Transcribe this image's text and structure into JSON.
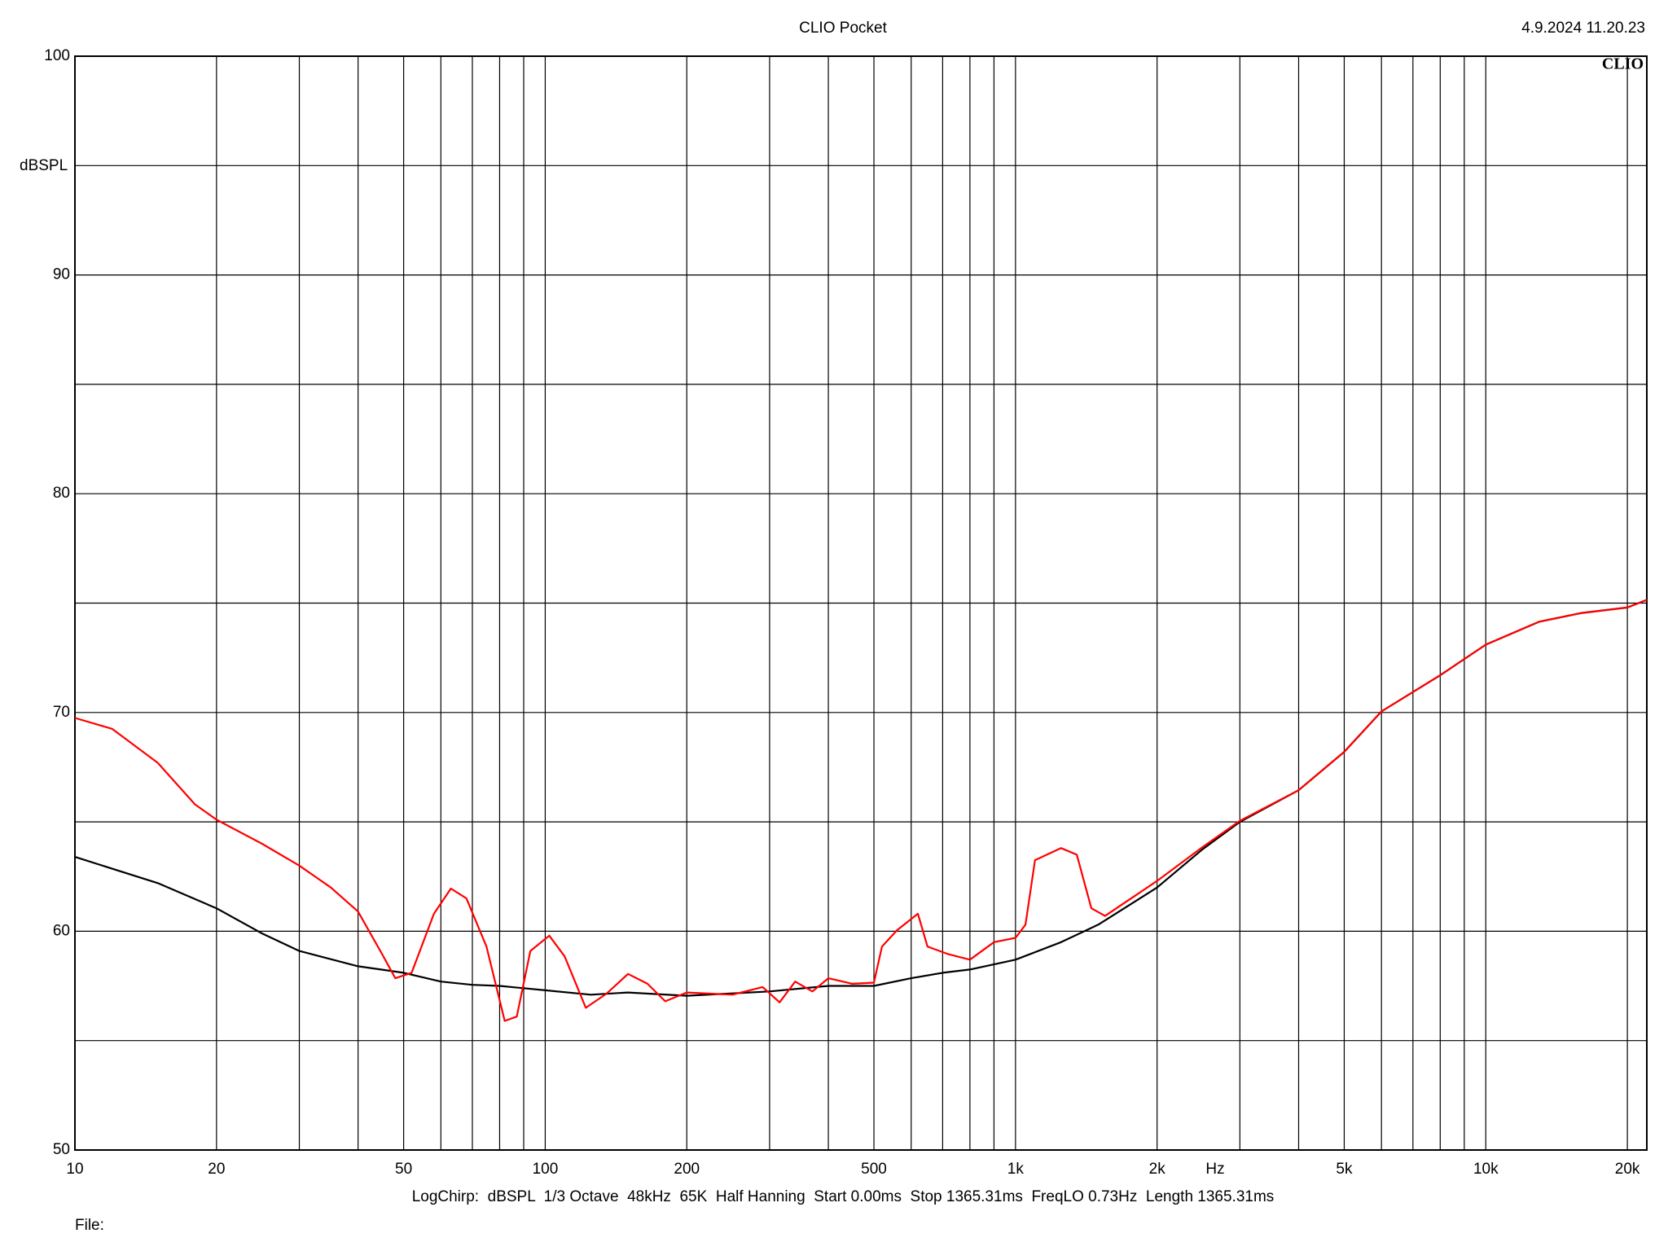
{
  "chart_data": {
    "type": "line",
    "title": "CLIO Pocket",
    "timestamp": "4.9.2024 11.20.23",
    "logo": "CLIO",
    "y_label": "dBSPL",
    "x_label": "Hz",
    "settings_line": "LogChirp:  dBSPL  1/3 Octave  48kHz  65K  Half Hanning  Start 0.00ms  Stop 1365.31ms  FreqLO 0.73Hz  Length 1365.31ms",
    "file_label": "File:",
    "x_log": true,
    "grid": true,
    "xlim": [
      10,
      22000
    ],
    "ylim": [
      50,
      100
    ],
    "xticks": [
      10,
      20,
      50,
      100,
      200,
      500,
      {
        "value": 1000,
        "label": "1k"
      },
      {
        "value": 2000,
        "label": "2k"
      },
      {
        "value": 5000,
        "label": "5k"
      },
      {
        "value": 10000,
        "label": "10k"
      },
      {
        "value": 20000,
        "label": "20k"
      }
    ],
    "x_minor_grid": [
      30,
      40,
      60,
      70,
      80,
      90,
      300,
      400,
      600,
      700,
      800,
      900,
      3000,
      4000,
      6000,
      7000,
      8000,
      9000
    ],
    "yticks": [
      50,
      60,
      70,
      80,
      90,
      100
    ],
    "y_minor_grid": [
      55,
      65,
      75,
      85,
      95
    ],
    "series": [
      {
        "color": "#000000",
        "x": [
          10,
          15,
          20,
          25,
          30,
          40,
          50,
          60,
          70,
          80,
          100,
          125,
          150,
          200,
          300,
          400,
          500,
          600,
          700,
          800,
          1000,
          1250,
          1500,
          2000,
          2500,
          3000,
          4000,
          5000,
          6000,
          8000,
          10000,
          13000,
          16000,
          20000,
          22000
        ],
        "values": [
          63.4,
          62.2,
          61.05,
          59.9,
          59.1,
          58.4,
          58.1,
          57.7,
          57.55,
          57.5,
          57.3,
          57.1,
          57.2,
          57.05,
          57.25,
          57.5,
          57.5,
          57.85,
          58.1,
          58.25,
          58.7,
          59.5,
          60.3,
          62.0,
          63.75,
          65.0,
          66.45,
          68.2,
          70.05,
          71.7,
          73.1,
          74.15,
          74.55,
          74.8,
          75.15
        ]
      },
      {
        "color": "#ff0000",
        "x": [
          10,
          12,
          15,
          18,
          20,
          25,
          30,
          35,
          40,
          45,
          48,
          52,
          58,
          63,
          68,
          75,
          82,
          87,
          93,
          102,
          110,
          122,
          135,
          150,
          165,
          180,
          200,
          250,
          290,
          315,
          340,
          370,
          400,
          450,
          500,
          520,
          560,
          620,
          650,
          720,
          800,
          900,
          1000,
          1050,
          1100,
          1250,
          1350,
          1450,
          1550,
          2000,
          2500,
          3000,
          4000,
          5000,
          6000,
          8000,
          10000,
          13000,
          16000,
          20000,
          22000
        ],
        "values": [
          69.75,
          69.25,
          67.7,
          65.8,
          65.1,
          64.0,
          63.0,
          62.0,
          60.9,
          58.95,
          57.85,
          58.1,
          60.8,
          61.95,
          61.5,
          59.3,
          55.9,
          56.1,
          59.1,
          59.8,
          58.85,
          56.5,
          57.15,
          58.05,
          57.6,
          56.8,
          57.2,
          57.1,
          57.45,
          56.75,
          57.7,
          57.25,
          57.85,
          57.6,
          57.65,
          59.3,
          60.05,
          60.8,
          59.3,
          58.95,
          58.7,
          59.5,
          59.7,
          60.3,
          63.25,
          63.8,
          63.5,
          61.05,
          60.7,
          62.3,
          63.85,
          65.05,
          66.45,
          68.2,
          70.05,
          71.7,
          73.1,
          74.15,
          74.55,
          74.8,
          75.15
        ]
      }
    ]
  }
}
